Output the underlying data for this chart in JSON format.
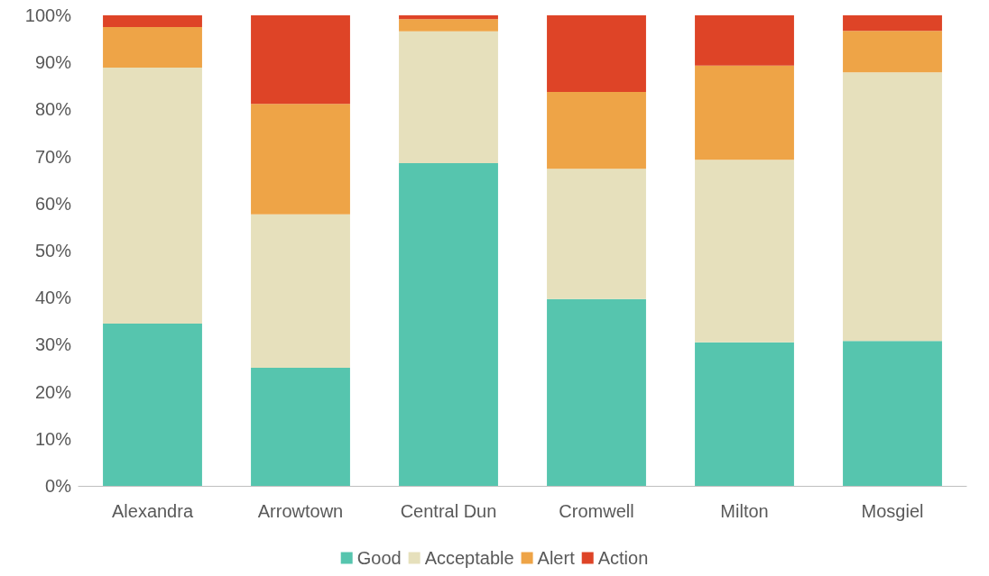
{
  "chart_data": {
    "type": "bar",
    "stacked": true,
    "categories": [
      "Alexandra",
      "Arrowtown",
      "Central Dun",
      "Cromwell",
      "Milton",
      "Mosgiel"
    ],
    "series": [
      {
        "name": "Good",
        "color": "#56c5ae",
        "values": [
          34.5,
          25.1,
          68.6,
          39.7,
          30.5,
          30.8
        ]
      },
      {
        "name": "Acceptable",
        "color": "#e6e0bc",
        "values": [
          54.4,
          32.6,
          28.0,
          27.7,
          38.8,
          57.1
        ]
      },
      {
        "name": "Alert",
        "color": "#eea447",
        "values": [
          8.6,
          23.5,
          2.6,
          16.3,
          20.0,
          8.8
        ]
      },
      {
        "name": "Action",
        "color": "#de4427",
        "values": [
          2.5,
          18.8,
          0.8,
          16.3,
          10.7,
          3.3
        ]
      }
    ],
    "ylim": [
      0,
      100
    ],
    "yticks": [
      {
        "value": 0,
        "label": "0%"
      },
      {
        "value": 10,
        "label": "10%"
      },
      {
        "value": 20,
        "label": "20%"
      },
      {
        "value": 30,
        "label": "30%"
      },
      {
        "value": 40,
        "label": "40%"
      },
      {
        "value": 50,
        "label": "50%"
      },
      {
        "value": 60,
        "label": "60%"
      },
      {
        "value": 70,
        "label": "70%"
      },
      {
        "value": 80,
        "label": "80%"
      },
      {
        "value": 90,
        "label": "90%"
      },
      {
        "value": 100,
        "label": "100%"
      }
    ],
    "grid": false,
    "legend": "bottom"
  }
}
